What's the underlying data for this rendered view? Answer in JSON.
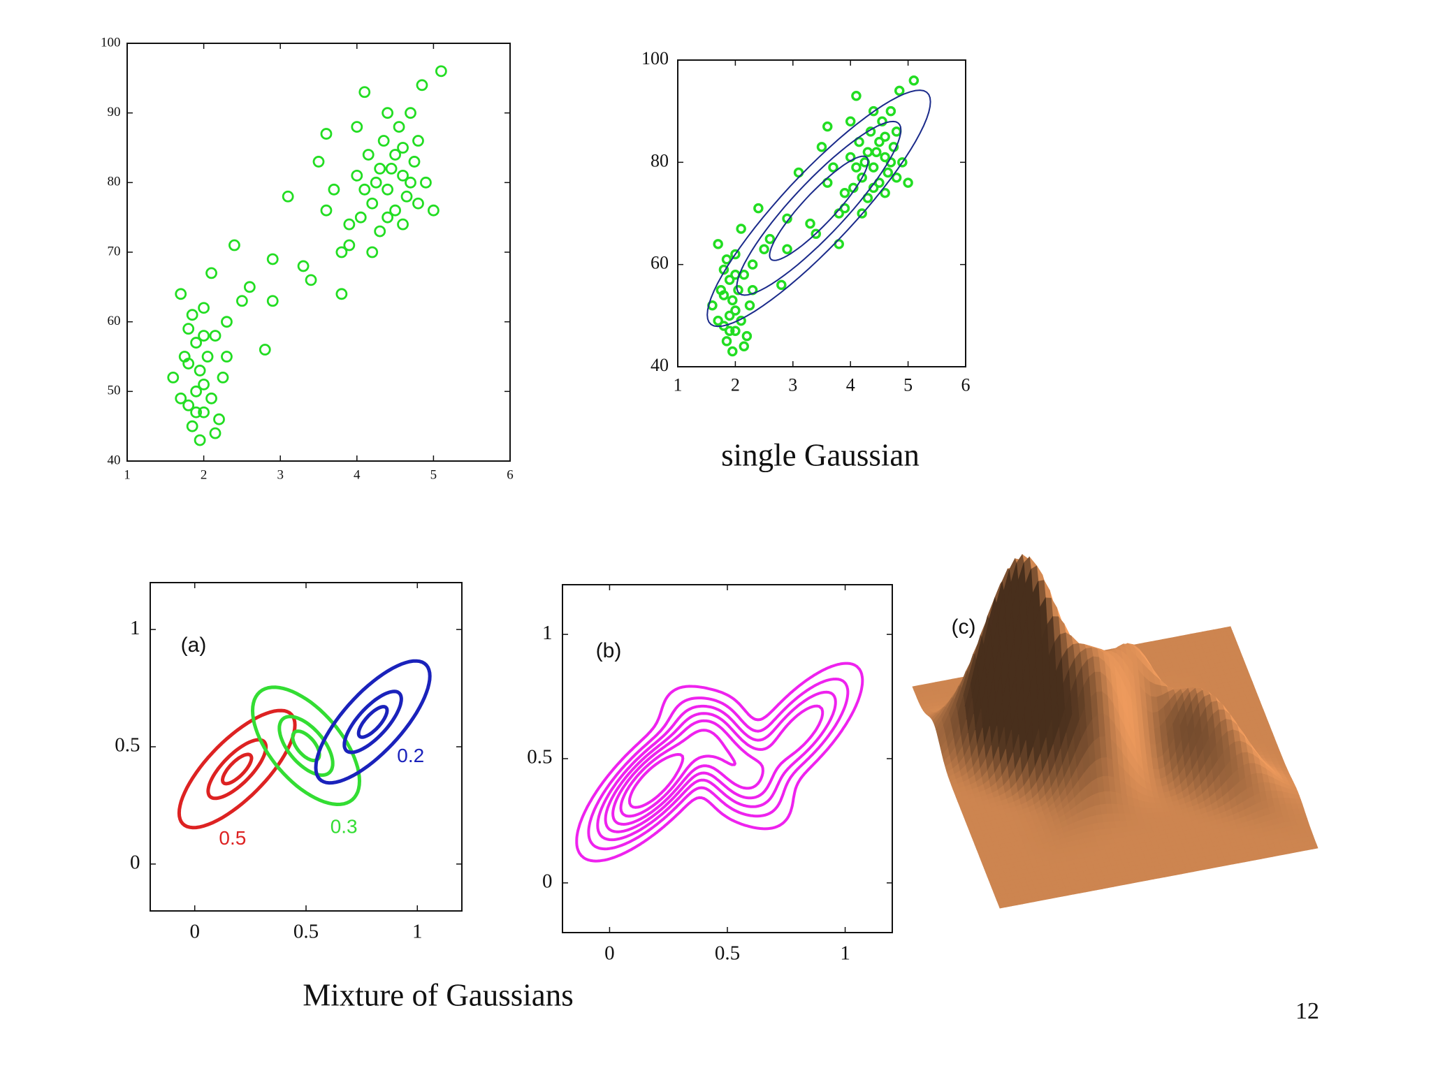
{
  "page_number": 12,
  "caption": "Mixture of Gaussians",
  "chart_data": [
    {
      "type": "scatter",
      "color": "#22dd22",
      "x": [
        1.6,
        1.7,
        1.75,
        1.8,
        1.8,
        1.85,
        1.9,
        1.9,
        1.95,
        2.0,
        2.0,
        2.05,
        2.1,
        2.15,
        2.2,
        2.25,
        2.3,
        1.7,
        1.85,
        1.95,
        2.0,
        2.1,
        2.3,
        2.4,
        2.5,
        2.6,
        2.8,
        2.9,
        1.8,
        1.9,
        2.0,
        2.15,
        3.3,
        3.4,
        3.6,
        3.8,
        3.5,
        3.7,
        3.9,
        4.0,
        4.05,
        4.1,
        4.15,
        4.2,
        4.25,
        4.3,
        4.35,
        4.4,
        4.45,
        4.5,
        4.55,
        4.6,
        4.65,
        4.7,
        4.75,
        4.8,
        4.85,
        4.9,
        5.0,
        5.1,
        3.6,
        3.8,
        4.0,
        4.2,
        4.4,
        4.6,
        4.8,
        4.1,
        4.3,
        4.5,
        4.7,
        3.9,
        4.4,
        4.6,
        2.9,
        3.1
      ],
      "y": [
        52,
        64,
        55,
        48,
        59,
        45,
        50,
        57,
        53,
        47,
        62,
        55,
        49,
        58,
        46,
        52,
        60,
        49,
        61,
        43,
        51,
        67,
        55,
        71,
        63,
        65,
        56,
        63,
        54,
        47,
        58,
        44,
        68,
        66,
        76,
        64,
        83,
        79,
        71,
        81,
        75,
        93,
        84,
        77,
        80,
        73,
        86,
        79,
        82,
        76,
        88,
        81,
        78,
        90,
        83,
        77,
        94,
        80,
        76,
        96,
        87,
        70,
        88,
        70,
        90,
        74,
        86,
        79,
        82,
        84,
        80,
        74,
        75,
        85,
        69,
        78
      ],
      "xlim": [
        1,
        6
      ],
      "ylim": [
        40,
        100
      ],
      "xticks": [
        1,
        2,
        3,
        4,
        5,
        6
      ],
      "yticks": [
        40,
        50,
        60,
        70,
        80,
        90,
        100
      ]
    },
    {
      "type": "scatter",
      "color": "#22dd22",
      "caption": "single Gaussian",
      "x": [
        1.6,
        1.7,
        1.75,
        1.8,
        1.8,
        1.85,
        1.9,
        1.9,
        1.95,
        2.0,
        2.0,
        2.05,
        2.1,
        2.15,
        2.2,
        2.25,
        2.3,
        1.7,
        1.85,
        1.95,
        2.0,
        2.1,
        2.3,
        2.4,
        2.5,
        2.6,
        2.8,
        2.9,
        1.8,
        1.9,
        2.0,
        2.15,
        3.3,
        3.4,
        3.6,
        3.8,
        3.5,
        3.7,
        3.9,
        4.0,
        4.05,
        4.1,
        4.15,
        4.2,
        4.25,
        4.3,
        4.35,
        4.4,
        4.45,
        4.5,
        4.55,
        4.6,
        4.65,
        4.7,
        4.75,
        4.8,
        4.85,
        4.9,
        5.0,
        5.1,
        3.6,
        3.8,
        4.0,
        4.2,
        4.4,
        4.6,
        4.8,
        4.1,
        4.3,
        4.5,
        4.7,
        3.9,
        4.4,
        4.6,
        2.9,
        3.1
      ],
      "y": [
        52,
        64,
        55,
        48,
        59,
        45,
        50,
        57,
        53,
        47,
        62,
        55,
        49,
        58,
        46,
        52,
        60,
        49,
        61,
        43,
        51,
        67,
        55,
        71,
        63,
        65,
        56,
        63,
        54,
        47,
        58,
        44,
        68,
        66,
        76,
        64,
        83,
        79,
        71,
        81,
        75,
        93,
        84,
        77,
        80,
        73,
        86,
        79,
        82,
        76,
        88,
        81,
        78,
        90,
        83,
        77,
        94,
        80,
        76,
        96,
        87,
        70,
        88,
        70,
        90,
        74,
        86,
        79,
        82,
        84,
        80,
        74,
        75,
        85,
        69,
        78
      ],
      "gaussian": {
        "mean": [
          3.45,
          71
        ],
        "cov": [
          [
            1.3,
            13.98
          ],
          [
            13.98,
            184.8
          ]
        ],
        "color": "#1a2a8a",
        "contour_sigmas": [
          0.75,
          1.25,
          1.7
        ]
      },
      "xlim": [
        1,
        6
      ],
      "ylim": [
        40,
        100
      ],
      "xticks": [
        1,
        2,
        3,
        4,
        5,
        6
      ],
      "yticks": [
        40,
        60,
        80,
        100
      ]
    },
    {
      "type": "mixture",
      "label": "(a)",
      "components": [
        {
          "weight": 0.5,
          "color": "#dd2222",
          "mean": [
            0.19,
            0.405
          ],
          "cov": [
            [
              0.0169,
              0.0122
            ],
            [
              0.0122,
              0.0156
            ]
          ]
        },
        {
          "weight": 0.3,
          "color": "#33dd33",
          "mean": [
            0.5,
            0.504
          ],
          "cov": [
            [
              0.0144,
              -0.009
            ],
            [
              -0.009,
              0.0156
            ]
          ]
        },
        {
          "weight": 0.2,
          "color": "#1a22bb",
          "mean": [
            0.8,
            0.606
          ],
          "cov": [
            [
              0.0164,
              0.0125
            ],
            [
              0.0125,
              0.0169
            ]
          ]
        }
      ],
      "contour_sigmas": [
        0.5,
        1,
        2
      ],
      "xlim": [
        -0.2,
        1.2
      ],
      "ylim": [
        -0.2,
        1.2
      ],
      "xticks": [
        0,
        0.5,
        1
      ],
      "yticks": [
        0,
        0.5,
        1
      ]
    },
    {
      "type": "mixture-density",
      "label": "(b)",
      "color": "#ee22ee",
      "components": [
        {
          "weight": 0.5,
          "mean": [
            0.19,
            0.405
          ],
          "cov": [
            [
              0.0169,
              0.0122
            ],
            [
              0.0122,
              0.0156
            ]
          ]
        },
        {
          "weight": 0.3,
          "mean": [
            0.5,
            0.504
          ],
          "cov": [
            [
              0.0144,
              -0.009
            ],
            [
              -0.009,
              0.0156
            ]
          ]
        },
        {
          "weight": 0.2,
          "mean": [
            0.8,
            0.606
          ],
          "cov": [
            [
              0.0164,
              0.0125
            ],
            [
              0.0125,
              0.0169
            ]
          ]
        }
      ],
      "contour_fractions": [
        0.04,
        0.1,
        0.18,
        0.28,
        0.4,
        0.55,
        0.72
      ],
      "xlim": [
        -0.2,
        1.2
      ],
      "ylim": [
        -0.2,
        1.2
      ],
      "xticks": [
        0,
        0.5,
        1
      ],
      "yticks": [
        0,
        0.5,
        1
      ]
    },
    {
      "type": "surface",
      "label": "(c)",
      "color": "#cd8550",
      "components": [
        {
          "weight": 0.5,
          "mean": [
            0.19,
            0.405
          ],
          "cov": [
            [
              0.0169,
              0.0122
            ],
            [
              0.0122,
              0.0156
            ]
          ]
        },
        {
          "weight": 0.3,
          "mean": [
            0.5,
            0.504
          ],
          "cov": [
            [
              0.0144,
              -0.009
            ],
            [
              -0.009,
              0.0156
            ]
          ]
        },
        {
          "weight": 0.2,
          "mean": [
            0.8,
            0.606
          ],
          "cov": [
            [
              0.0164,
              0.0125
            ],
            [
              0.0125,
              0.0169
            ]
          ]
        }
      ]
    }
  ]
}
